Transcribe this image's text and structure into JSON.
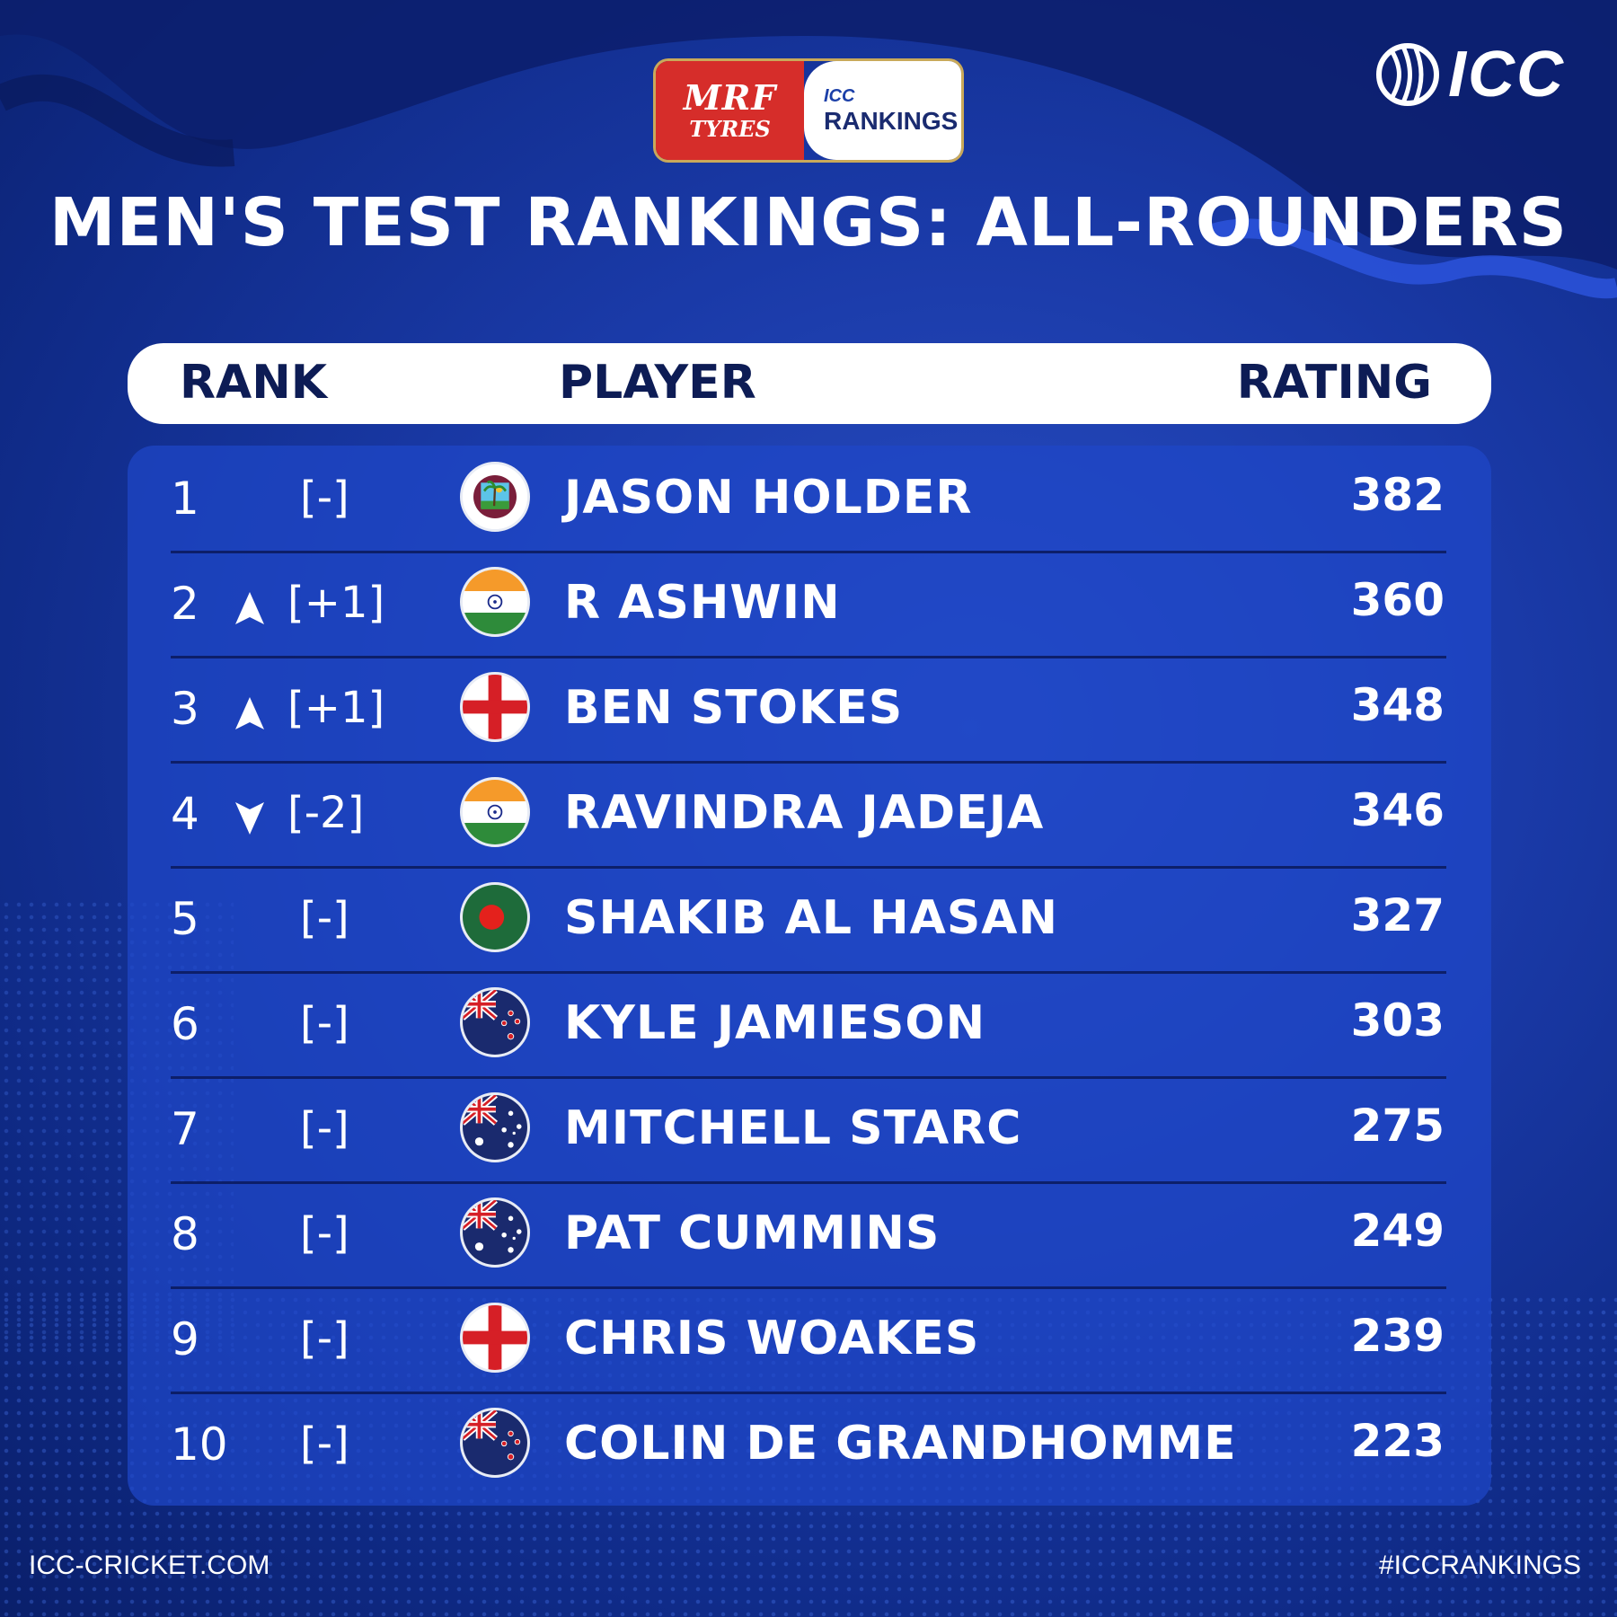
{
  "sponsor": {
    "brand_line1": "MRF",
    "brand_line2": "TYRES",
    "rankings_small": "ICC",
    "rankings_big": "RANKINGS"
  },
  "logo": {
    "text": "ICC"
  },
  "title": "MEN'S TEST RANKINGS: ALL-ROUNDERS",
  "headers": {
    "rank": "RANK",
    "player": "PLAYER",
    "rating": "RATING"
  },
  "colors": {
    "background": "#1a3aa8",
    "panel": "#1e46c8",
    "header_text": "#0d1c55",
    "sponsor_red": "#d62d2a"
  },
  "rows": [
    {
      "rank": "1",
      "trend": "none",
      "change": "[-]",
      "flag": "west-indies",
      "player": "JASON HOLDER",
      "rating": "382"
    },
    {
      "rank": "2",
      "trend": "up",
      "change": "[+1]",
      "flag": "india",
      "player": "R ASHWIN",
      "rating": "360"
    },
    {
      "rank": "3",
      "trend": "up",
      "change": "[+1]",
      "flag": "england",
      "player": "BEN STOKES",
      "rating": "348"
    },
    {
      "rank": "4",
      "trend": "down",
      "change": "[-2]",
      "flag": "india",
      "player": "RAVINDRA JADEJA",
      "rating": "346"
    },
    {
      "rank": "5",
      "trend": "none",
      "change": "[-]",
      "flag": "bangladesh",
      "player": "SHAKIB AL HASAN",
      "rating": "327"
    },
    {
      "rank": "6",
      "trend": "none",
      "change": "[-]",
      "flag": "new-zealand",
      "player": "KYLE JAMIESON",
      "rating": "303"
    },
    {
      "rank": "7",
      "trend": "none",
      "change": "[-]",
      "flag": "australia",
      "player": "MITCHELL STARC",
      "rating": "275"
    },
    {
      "rank": "8",
      "trend": "none",
      "change": "[-]",
      "flag": "australia",
      "player": "PAT CUMMINS",
      "rating": "249"
    },
    {
      "rank": "9",
      "trend": "none",
      "change": "[-]",
      "flag": "england",
      "player": "CHRIS WOAKES",
      "rating": "239"
    },
    {
      "rank": "10",
      "trend": "none",
      "change": "[-]",
      "flag": "new-zealand",
      "player": "COLIN DE GRANDHOMME",
      "rating": "223"
    }
  ],
  "footer": {
    "website": "ICC-CRICKET.COM",
    "hashtag": "#ICCRANKINGS"
  }
}
